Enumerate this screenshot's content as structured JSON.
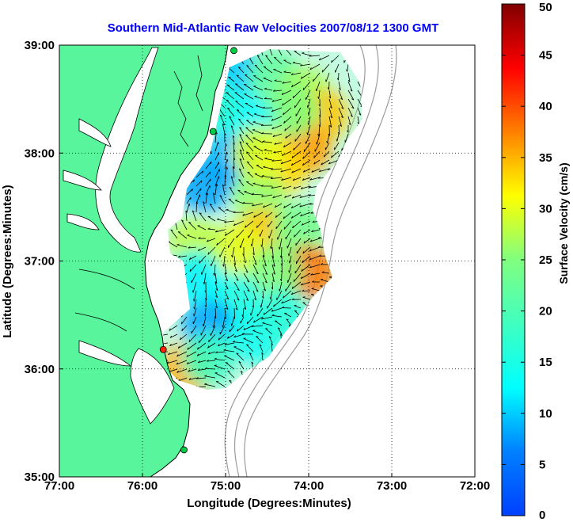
{
  "chart_data": {
    "type": "map-vector-field",
    "title": "Southern Mid-Atlantic Raw Velocities 2007/08/12 1300 GMT",
    "xlabel": "Longitude (Degrees:Minutes)",
    "ylabel": "Latitude (Degrees:Minutes)",
    "x_ticks": [
      "77:00",
      "76:00",
      "75:00",
      "74:00",
      "73:00",
      "72:00"
    ],
    "x_tick_values": [
      -77,
      -76,
      -75,
      -74,
      -73,
      -72
    ],
    "y_ticks": [
      "39:00",
      "38:00",
      "37:00",
      "36:00",
      "35:00"
    ],
    "y_tick_values": [
      39,
      38,
      37,
      36,
      35
    ],
    "xlim": [
      -77,
      -72
    ],
    "ylim": [
      35,
      39
    ],
    "grid": "dotted",
    "colorbar": {
      "label": "Surface Velocity (cm/s)",
      "range": [
        0,
        50
      ],
      "ticks": [
        "0",
        "5",
        "10",
        "15",
        "20",
        "25",
        "30",
        "35",
        "40",
        "45",
        "50"
      ],
      "tick_values": [
        0,
        5,
        10,
        15,
        20,
        25,
        30,
        35,
        40,
        45,
        50
      ],
      "colormap": "jet"
    },
    "speed_patches": [
      {
        "lon": -74.9,
        "lat": 38.75,
        "speed": 10
      },
      {
        "lon": -74.4,
        "lat": 38.7,
        "speed": 22
      },
      {
        "lon": -74.05,
        "lat": 38.55,
        "speed": 27
      },
      {
        "lon": -73.85,
        "lat": 38.35,
        "speed": 34
      },
      {
        "lon": -74.05,
        "lat": 38.05,
        "speed": 36
      },
      {
        "lon": -74.35,
        "lat": 37.85,
        "speed": 33
      },
      {
        "lon": -74.2,
        "lat": 38.4,
        "speed": 25
      },
      {
        "lon": -74.75,
        "lat": 38.3,
        "speed": 13
      },
      {
        "lon": -74.95,
        "lat": 37.95,
        "speed": 9
      },
      {
        "lon": -75.15,
        "lat": 38.45,
        "speed": 16
      },
      {
        "lon": -75.25,
        "lat": 37.7,
        "speed": 8
      },
      {
        "lon": -74.6,
        "lat": 37.6,
        "speed": 26
      },
      {
        "lon": -74.55,
        "lat": 37.25,
        "speed": 34
      },
      {
        "lon": -74.85,
        "lat": 37.1,
        "speed": 30
      },
      {
        "lon": -75.35,
        "lat": 37.15,
        "speed": 28
      },
      {
        "lon": -74.1,
        "lat": 37.3,
        "speed": 24
      },
      {
        "lon": -74.0,
        "lat": 36.9,
        "speed": 38
      },
      {
        "lon": -74.4,
        "lat": 36.9,
        "speed": 25
      },
      {
        "lon": -74.9,
        "lat": 36.65,
        "speed": 15
      },
      {
        "lon": -75.2,
        "lat": 36.4,
        "speed": 8
      },
      {
        "lon": -74.65,
        "lat": 36.3,
        "speed": 14
      },
      {
        "lon": -75.35,
        "lat": 36.85,
        "speed": 12
      },
      {
        "lon": -75.45,
        "lat": 36.0,
        "speed": 35
      },
      {
        "lon": -75.2,
        "lat": 36.1,
        "speed": 18
      },
      {
        "lon": -74.3,
        "lat": 36.5,
        "speed": 16
      },
      {
        "lon": -74.6,
        "lat": 38.0,
        "speed": 30
      }
    ],
    "radar_sites": [
      {
        "lon": -74.9,
        "lat": 38.95,
        "color": "#00cc44"
      },
      {
        "lon": -75.15,
        "lat": 38.2,
        "color": "#00cc44"
      },
      {
        "lon": -75.75,
        "lat": 36.18,
        "color": "#ff2200"
      },
      {
        "lon": -75.5,
        "lat": 35.25,
        "color": "#00cc44"
      }
    ]
  },
  "colors": {
    "land": "#59f59c",
    "title": "#0000ff",
    "background": "#ffffff"
  }
}
